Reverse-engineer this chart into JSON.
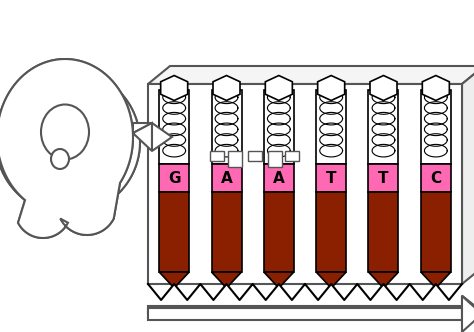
{
  "letters": [
    "G",
    "A",
    "A",
    "T",
    "T",
    "C"
  ],
  "tube_color_pink": "#ff69b4",
  "tube_color_brown": "#8B2000",
  "tube_outline": "#000000",
  "box_outline": "#555555",
  "key_outline": "#555555",
  "letter_color": "#000000",
  "background": "#ffffff",
  "figsize": [
    4.74,
    3.32
  ],
  "dpi": 100
}
